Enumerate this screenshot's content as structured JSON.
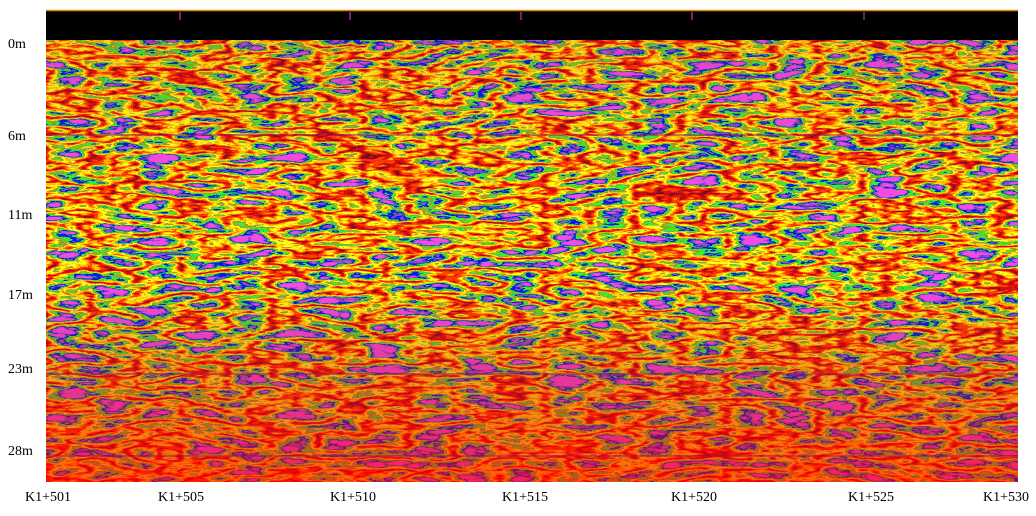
{
  "depth_labels": [
    "0m",
    "6m",
    "11m",
    "17m",
    "23m",
    "28m"
  ],
  "chainage_labels": [
    "K1+501",
    "K1+505",
    "K1+510",
    "K1+515",
    "K1+520",
    "K1+525",
    "K1+530"
  ]
}
